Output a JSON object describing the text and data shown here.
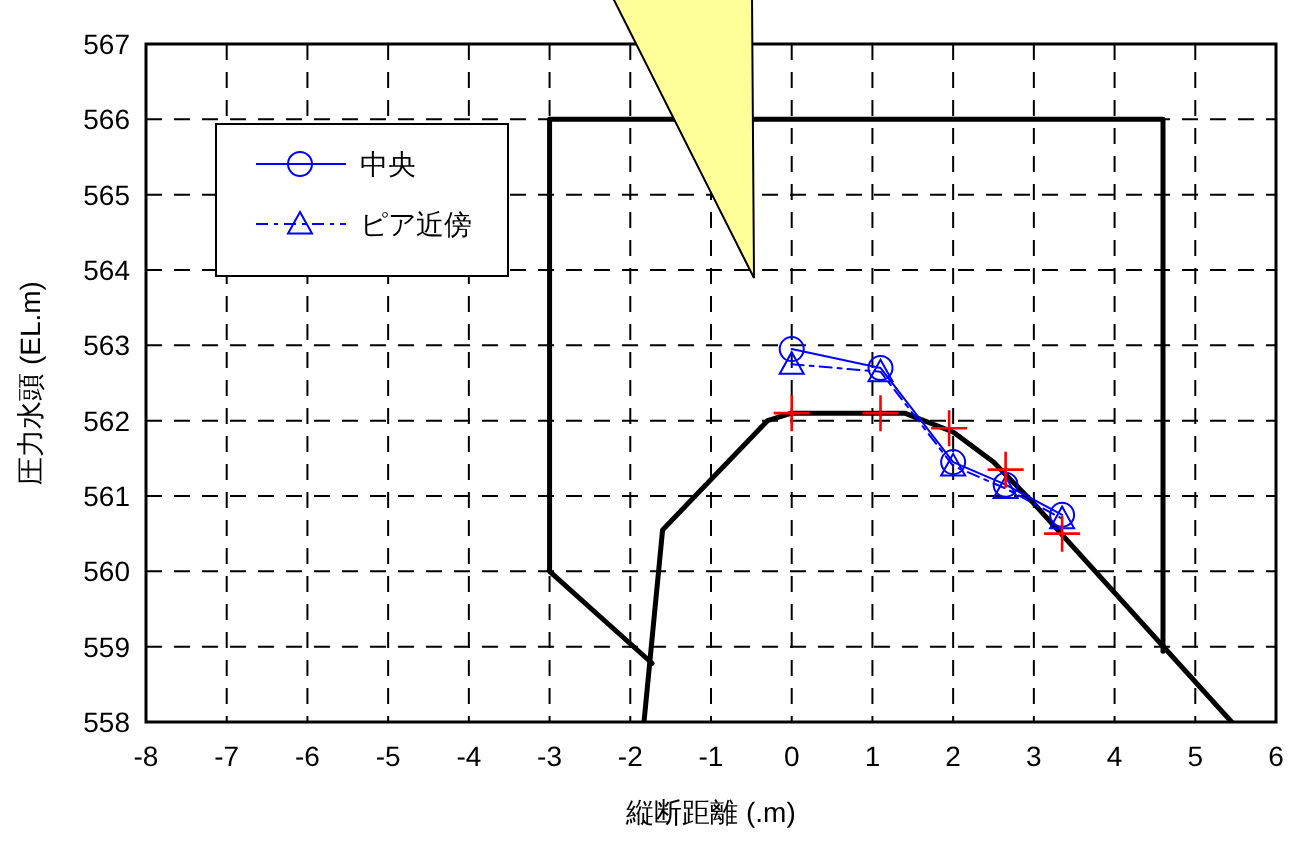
{
  "chart_data": {
    "type": "line",
    "xlabel": "縦断距離 (.m)",
    "ylabel": "圧力水頭 (EL.m)",
    "xlim": [
      -8,
      6
    ],
    "ylim": [
      558,
      567
    ],
    "xticks": [
      -8,
      -7,
      -6,
      -5,
      -4,
      -3,
      -2,
      -1,
      0,
      1,
      2,
      3,
      4,
      5,
      6
    ],
    "yticks": [
      558,
      559,
      560,
      561,
      562,
      563,
      564,
      565,
      566,
      567
    ],
    "grid": true,
    "legend": "top left",
    "series": [
      {
        "color": "#000000",
        "marker": "none",
        "line_style": "solid",
        "x": [
          -1.73,
          -3,
          -3,
          4.6,
          4.6
        ],
        "values": [
          558.78,
          560,
          566,
          566,
          558.94
        ]
      },
      {
        "color": "#000000",
        "marker": "none",
        "line_style": "solid",
        "x": [
          -1.83,
          -1.6,
          -0.3,
          0,
          1.4,
          2,
          2.5,
          3,
          5.45
        ],
        "values": [
          558,
          560.55,
          562,
          562.1,
          562.1,
          561.85,
          561.45,
          560.9,
          558
        ]
      },
      {
        "name": "中央",
        "color": "#0000ff",
        "marker": "circle",
        "line_style": "solid",
        "x": [
          0,
          1.1,
          2,
          2.65,
          3.35
        ],
        "values": [
          562.95,
          562.7,
          561.45,
          561.15,
          560.75
        ]
      },
      {
        "name": "ピア近傍",
        "color": "#0000ff",
        "marker": "triangle",
        "line_style": "dashed",
        "x": [
          0,
          1.1,
          2,
          2.65,
          3.35
        ],
        "values": [
          562.75,
          562.65,
          561.4,
          561.1,
          560.7
        ]
      },
      {
        "type": "scatter",
        "color": "#ff0000",
        "marker": "cross",
        "x": [
          0,
          1.1,
          1.95,
          2.65,
          3.35
        ],
        "values": [
          562.1,
          562.1,
          561.9,
          561.35,
          560.5
        ]
      }
    ]
  }
}
